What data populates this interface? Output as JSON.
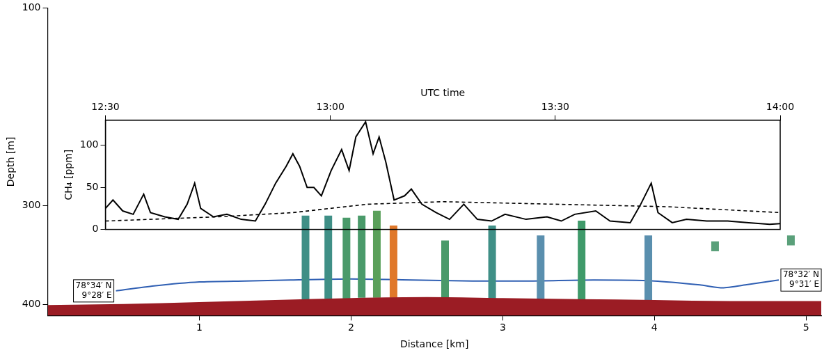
{
  "chart_data": [
    {
      "type": "echogram",
      "xlabel": "Distance [km]",
      "ylabel": "Depth [m]",
      "xlim": [
        0,
        5.1
      ],
      "ylim": [
        411,
        100
      ],
      "xticks": [
        1,
        2,
        3,
        4,
        5
      ],
      "yticks": [
        100,
        300,
        400
      ],
      "seafloor": {
        "color": "#9b1c24",
        "x": [
          0,
          0.5,
          1,
          1.5,
          2,
          2.5,
          3,
          3.5,
          4,
          4.5,
          5.1
        ],
        "values": [
          401,
          400,
          398,
          396,
          394,
          393,
          394,
          395,
          396,
          397,
          397
        ]
      },
      "track": {
        "color": "#2f5fb3",
        "x": [
          0.45,
          0.7,
          1,
          1.3,
          1.6,
          2,
          2.4,
          2.8,
          3.2,
          3.6,
          4,
          4.3,
          4.45,
          4.6,
          4.82
        ],
        "values": [
          386,
          381,
          377,
          376,
          375,
          374,
          375,
          376,
          376,
          375,
          376,
          380,
          383,
          380,
          375
        ],
        "start_label": [
          "78°34′ N",
          "9°28′ E"
        ],
        "end_label": [
          "78°32′ N",
          "9°31′ E"
        ]
      },
      "flares": {
        "x": [
          1.7,
          1.85,
          1.97,
          2.07,
          2.17,
          2.28,
          2.62,
          2.93,
          3.25,
          3.52,
          3.96,
          4.4,
          4.9
        ],
        "top": [
          310,
          310,
          312,
          310,
          305,
          320,
          335,
          320,
          330,
          315,
          330,
          336,
          330
        ],
        "bottom": [
          395,
          394,
          394,
          393,
          393,
          393,
          393,
          394,
          394,
          395,
          396,
          346,
          340
        ],
        "colors": [
          "#3f8f86",
          "#3f8f86",
          "#4a9a6a",
          "#4a9a6a",
          "#5aa05a",
          "#e0782a",
          "#4a9a6a",
          "#3f8f86",
          "#5a8fae",
          "#3f9a6a",
          "#5a8fae",
          "#5aa07a",
          "#5aa07a"
        ]
      }
    },
    {
      "type": "line",
      "xlabel": "UTC time",
      "ylabel": "CH₄ [ppm]",
      "xlim": [
        0,
        90
      ],
      "ylim": [
        0,
        130
      ],
      "xticks": [
        {
          "value": 0,
          "label": "12:30"
        },
        {
          "value": 30,
          "label": "13:00"
        },
        {
          "value": 60,
          "label": "13:30"
        },
        {
          "value": 90,
          "label": "14:00"
        }
      ],
      "yticks": [
        0,
        50,
        100
      ],
      "series": [
        {
          "color": "#000000",
          "line_style": "solid",
          "x": [
            0,
            1,
            2.3,
            3.7,
            5.1,
            6,
            7.9,
            9.7,
            10.9,
            11.9,
            12.7,
            14.4,
            16.2,
            18.1,
            20,
            21.3,
            22.7,
            24.1,
            25,
            25.9,
            26.9,
            27.8,
            28.8,
            30.1,
            31.5,
            32.5,
            33.4,
            34.7,
            35.7,
            36.5,
            37.4,
            38.5,
            39.9,
            40.8,
            42.2,
            44.1,
            45.9,
            47.8,
            49.6,
            51.5,
            53.3,
            56.1,
            58.9,
            60.8,
            62.6,
            65.4,
            67.3,
            70,
            71.4,
            72.8,
            73.7,
            75.6,
            77.5,
            80.2,
            83,
            85.8,
            88.6,
            90
          ],
          "values": [
            25,
            35,
            22,
            18,
            42,
            20,
            15,
            12,
            30,
            55,
            25,
            15,
            18,
            12,
            10,
            30,
            55,
            75,
            90,
            75,
            50,
            50,
            40,
            70,
            95,
            70,
            110,
            128,
            90,
            110,
            80,
            35,
            40,
            48,
            30,
            20,
            12,
            30,
            12,
            10,
            18,
            12,
            15,
            10,
            18,
            22,
            10,
            8,
            30,
            55,
            20,
            8,
            12,
            10,
            10,
            8,
            6,
            7
          ]
        },
        {
          "color": "#000000",
          "line_style": "dashed",
          "x": [
            0,
            15,
            25,
            35,
            45,
            60,
            75,
            90
          ],
          "values": [
            10,
            15,
            20,
            30,
            33,
            30,
            27,
            20
          ]
        }
      ]
    }
  ]
}
